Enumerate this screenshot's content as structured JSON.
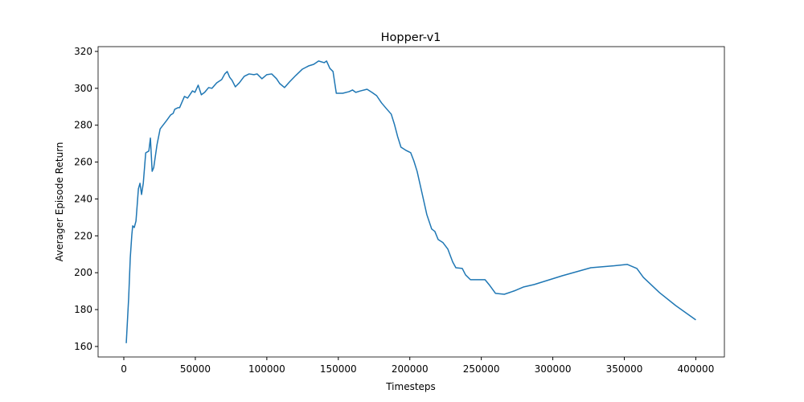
{
  "chart_data": {
    "type": "line",
    "title": "Hopper-v1",
    "x_label": "Timesteps",
    "y_label": "Averager Episode Return",
    "x": [
      1700,
      3400,
      4500,
      5600,
      6200,
      7300,
      8500,
      10200,
      11300,
      12400,
      13600,
      15300,
      17500,
      18600,
      19800,
      20900,
      23200,
      25400,
      29900,
      32800,
      34500,
      35600,
      37900,
      39000,
      42400,
      44600,
      48000,
      49700,
      52000,
      54200,
      56500,
      59300,
      61600,
      65000,
      68400,
      70600,
      72300,
      74000,
      75700,
      78000,
      80800,
      84200,
      87600,
      91000,
      93200,
      96600,
      100000,
      103400,
      106800,
      109000,
      112400,
      115800,
      120300,
      124900,
      129400,
      132800,
      136200,
      140100,
      141800,
      144100,
      146300,
      148600,
      153100,
      157600,
      159900,
      162200,
      165500,
      170100,
      173500,
      176800,
      180200,
      183600,
      187000,
      189300,
      191500,
      193800,
      197200,
      200600,
      202800,
      205100,
      208500,
      211900,
      215300,
      217500,
      219800,
      223200,
      226600,
      230000,
      232200,
      236700,
      239000,
      242400,
      252600,
      255900,
      259900,
      266100,
      272900,
      279700,
      287000,
      306800,
      326600,
      340700,
      352000,
      358800,
      363300,
      374600,
      385900,
      400000
    ],
    "series": [
      {
        "name": "Hopper-v1",
        "color": "#1f77b4",
        "values": [
          161.8,
          186.6,
          208,
          220.6,
          225.4,
          224.5,
          228,
          245.5,
          248.5,
          242.4,
          248.5,
          265,
          266,
          273,
          255,
          257,
          269.4,
          278,
          282.5,
          285.6,
          286.4,
          288.6,
          289.5,
          289.5,
          295.6,
          294.7,
          298.6,
          297.8,
          301.7,
          296.5,
          297.8,
          300.4,
          300,
          303,
          304.7,
          307.8,
          309.1,
          306,
          304.3,
          300.8,
          303,
          306.5,
          307.8,
          307.4,
          307.8,
          305.2,
          307.4,
          307.8,
          305.2,
          302.6,
          300.4,
          303.4,
          307,
          310.4,
          312.2,
          313,
          314.8,
          313.9,
          314.8,
          310.8,
          309.1,
          297.3,
          297.3,
          298.2,
          299.1,
          297.8,
          298.6,
          299.5,
          297.8,
          296,
          292.1,
          289,
          286,
          280.3,
          273.8,
          268.1,
          266.4,
          265.1,
          260.7,
          255,
          243.3,
          231.5,
          223.7,
          222.4,
          218,
          216.3,
          212.8,
          205.8,
          202.7,
          202.3,
          198.8,
          196.2,
          196.2,
          193.1,
          188.8,
          188.3,
          190.1,
          192.3,
          193.6,
          198.4,
          202.7,
          203.6,
          204.5,
          202.3,
          197.5,
          189.2,
          182.2,
          174.4
        ]
      }
    ],
    "xlim": [
      -18000,
      420000
    ],
    "ylim": [
      154.3,
      322.6
    ],
    "xticks": [
      0,
      50000,
      100000,
      150000,
      200000,
      250000,
      300000,
      350000,
      400000
    ],
    "yticks": [
      160,
      180,
      200,
      220,
      240,
      260,
      280,
      300,
      320
    ]
  }
}
